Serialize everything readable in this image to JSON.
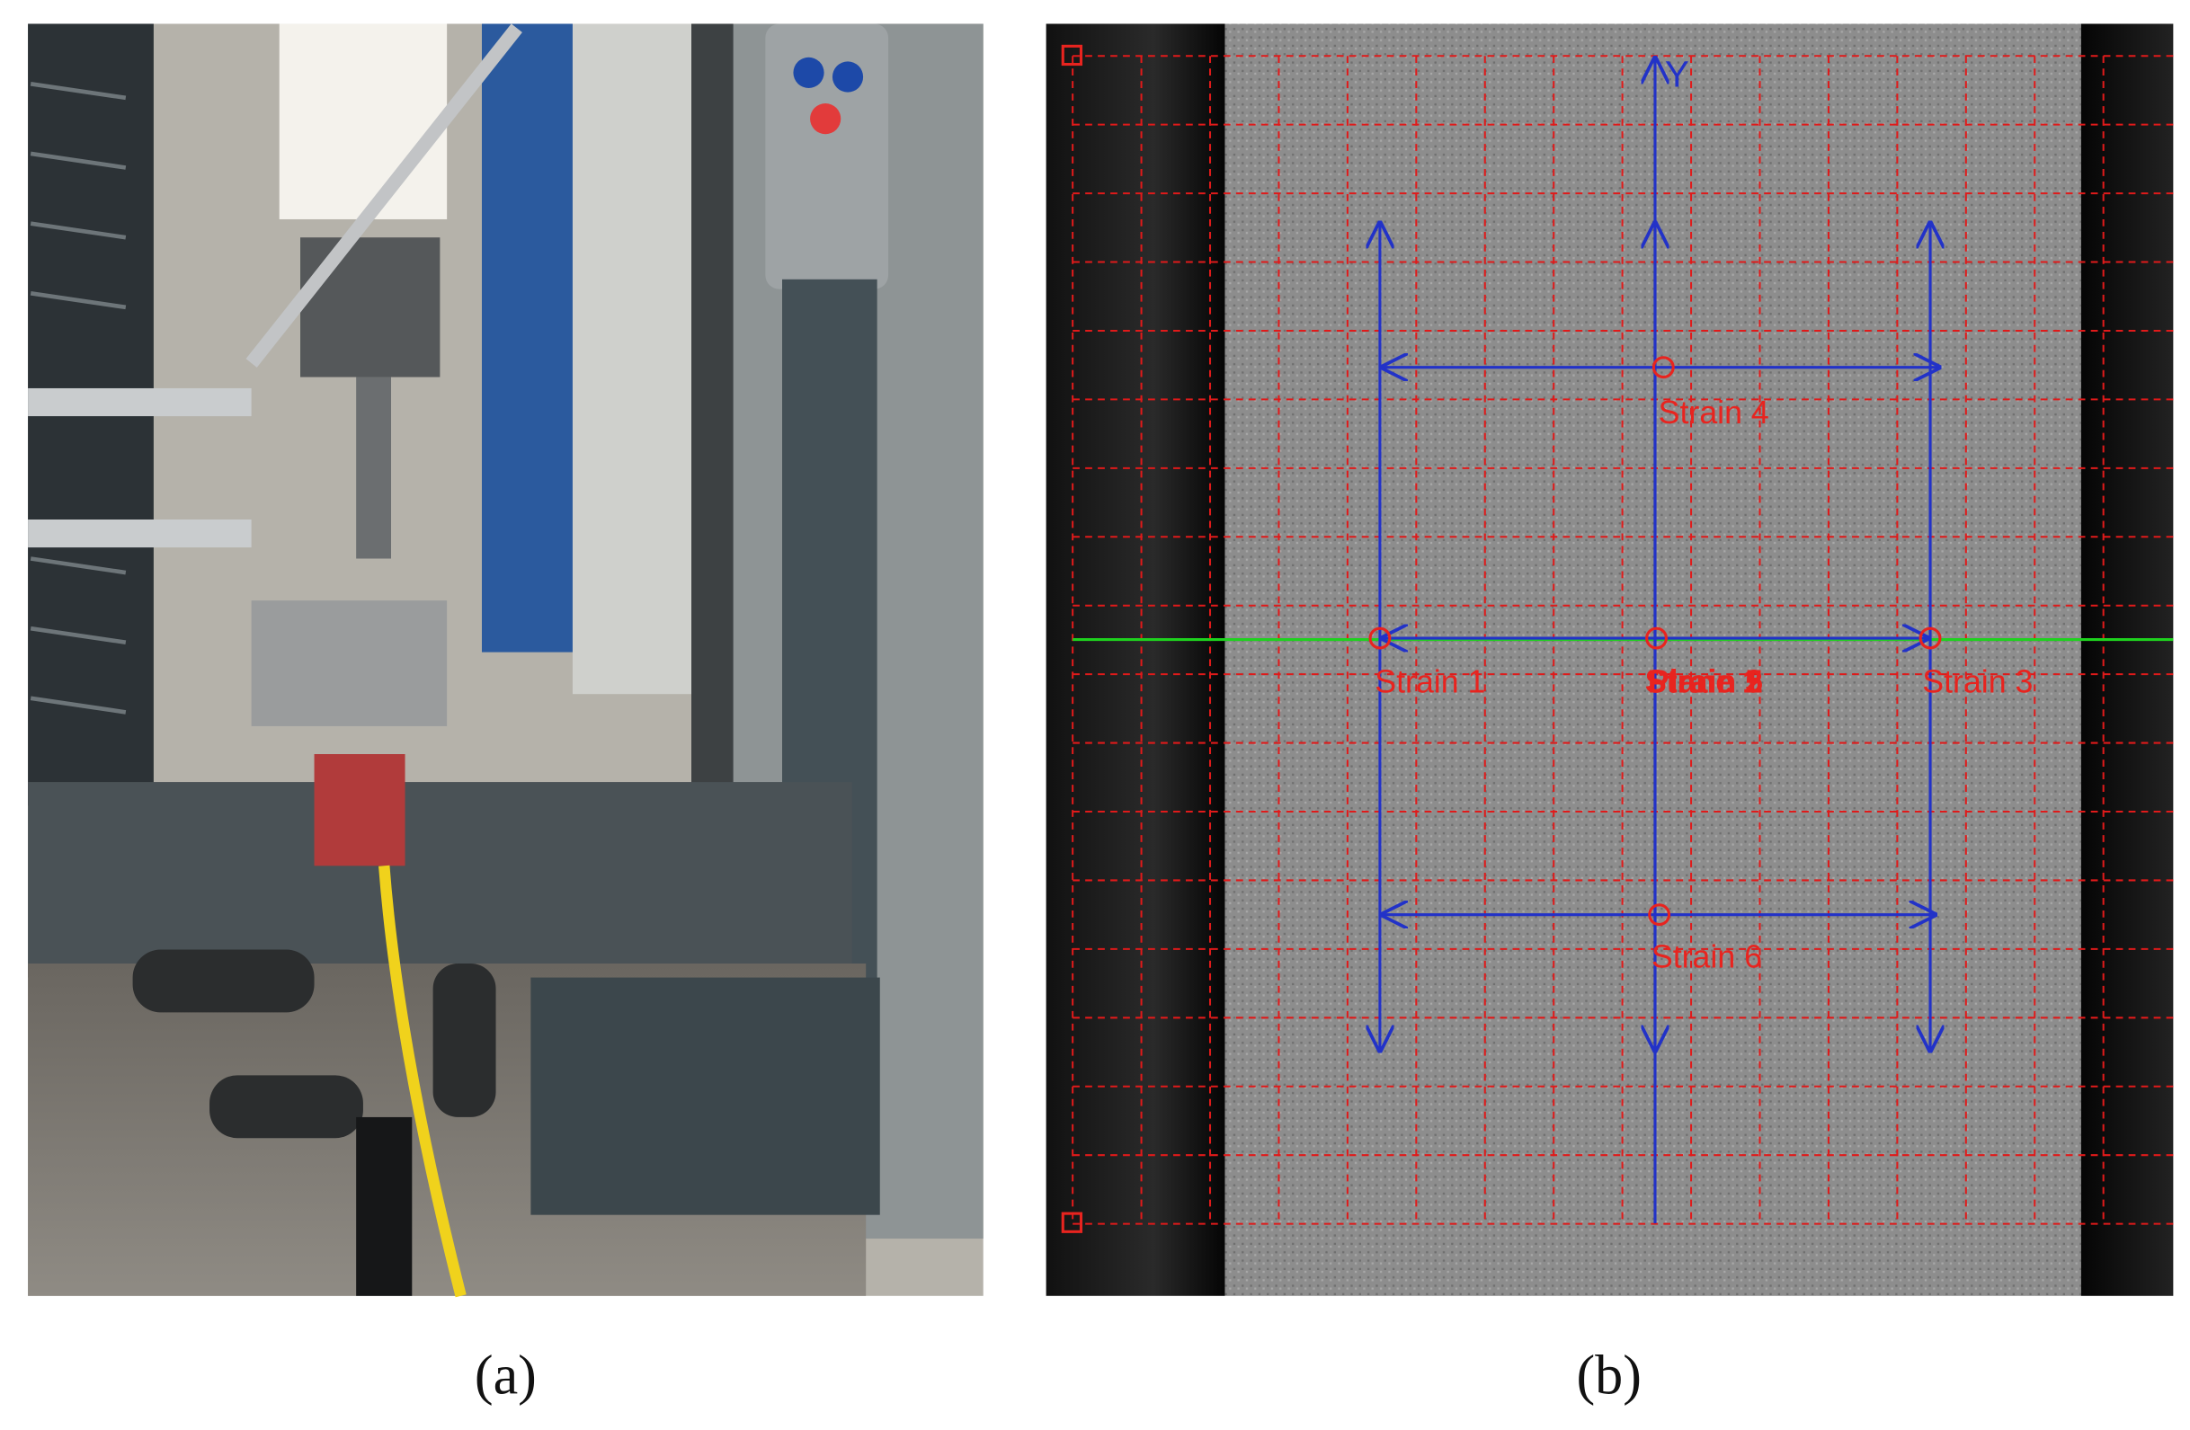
{
  "panel_a": {
    "label": "(a)"
  },
  "panel_b": {
    "label": "(b)",
    "axis_label": "Y",
    "strain_labels": [
      "Strain 1",
      "Strain 2",
      "Strain 3",
      "Strain 4",
      "Strain 5",
      "Strain 6",
      "Plane 1"
    ]
  }
}
